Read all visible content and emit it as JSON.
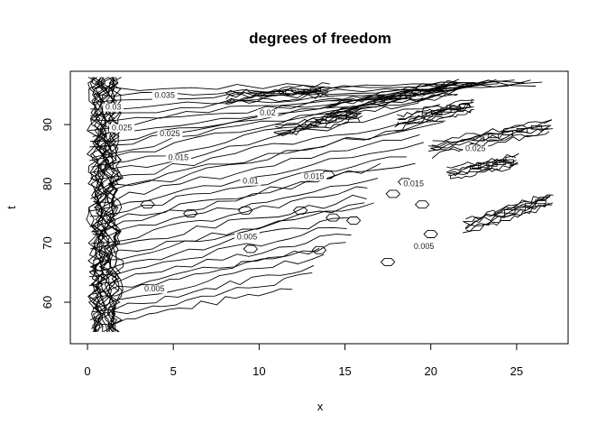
{
  "chart_data": {
    "type": "contour",
    "title": "degrees of freedom",
    "xlabel": "x",
    "ylabel": "t",
    "xlim": [
      -1,
      28
    ],
    "ylim": [
      53,
      99
    ],
    "xticks": [
      0,
      5,
      10,
      15,
      20,
      25
    ],
    "yticks": [
      60,
      70,
      80,
      90
    ],
    "grid": false,
    "legend": "none",
    "line_color": "#000000",
    "contour_levels": [
      "0.005",
      "0.01",
      "0.015",
      "0.02",
      "0.025",
      "0.03",
      "0.035"
    ],
    "contour_labels": [
      {
        "text": "0.03",
        "x": 1.5,
        "y": 92.5
      },
      {
        "text": "0.035",
        "x": 4.5,
        "y": 94.5
      },
      {
        "text": "0.025",
        "x": 2.0,
        "y": 89.0
      },
      {
        "text": "0.025",
        "x": 4.8,
        "y": 88.0
      },
      {
        "text": "0.02",
        "x": 10.5,
        "y": 91.5
      },
      {
        "text": "0.015",
        "x": 5.3,
        "y": 84.0
      },
      {
        "text": "0.01",
        "x": 9.5,
        "y": 80.0
      },
      {
        "text": "0.015",
        "x": 13.2,
        "y": 80.8
      },
      {
        "text": "0.005",
        "x": 9.3,
        "y": 70.6
      },
      {
        "text": "0.005",
        "x": 3.9,
        "y": 61.8
      },
      {
        "text": "0.015",
        "x": 19.0,
        "y": 79.6
      },
      {
        "text": "0.025",
        "x": 22.6,
        "y": 85.5
      },
      {
        "text": "0.005",
        "x": 19.6,
        "y": 69.0
      }
    ]
  }
}
